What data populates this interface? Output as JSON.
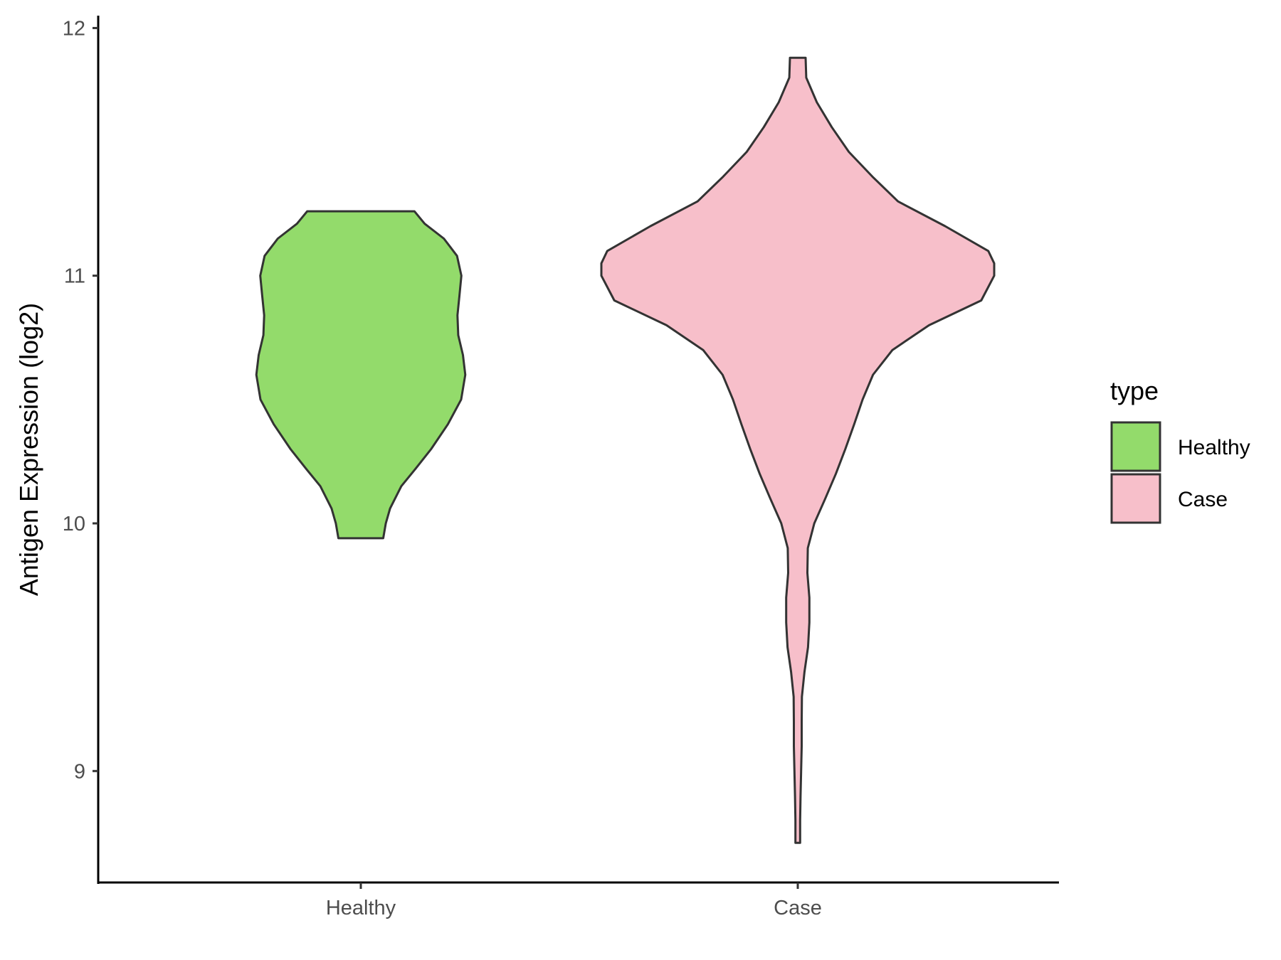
{
  "chart_data": {
    "type": "violin",
    "title": "",
    "xlabel": "",
    "ylabel": "Antigen Expression (log2)",
    "ylim": [
      8.55,
      12.05
    ],
    "yticks": [
      9,
      10,
      11,
      12
    ],
    "categories": [
      "Healthy",
      "Case"
    ],
    "legend": {
      "title": "type",
      "position": "right",
      "entries": [
        "Healthy",
        "Case"
      ]
    },
    "grid": false,
    "series": [
      {
        "name": "Healthy",
        "color": "#93DB6B",
        "range": [
          9.94,
          11.26
        ],
        "density": [
          [
            9.94,
            0.114
          ],
          [
            10.0,
            0.127
          ],
          [
            10.06,
            0.149
          ],
          [
            10.15,
            0.206
          ],
          [
            10.22,
            0.278
          ],
          [
            10.3,
            0.358
          ],
          [
            10.4,
            0.443
          ],
          [
            10.5,
            0.511
          ],
          [
            10.6,
            0.532
          ],
          [
            10.68,
            0.52
          ],
          [
            10.76,
            0.496
          ],
          [
            10.84,
            0.492
          ],
          [
            10.92,
            0.502
          ],
          [
            11.0,
            0.512
          ],
          [
            11.08,
            0.49
          ],
          [
            11.15,
            0.423
          ],
          [
            11.21,
            0.325
          ],
          [
            11.26,
            0.273
          ]
        ]
      },
      {
        "name": "Case",
        "color": "#F7BFCA",
        "range": [
          8.71,
          11.88
        ],
        "density": [
          [
            8.71,
            0.012
          ],
          [
            8.8,
            0.012
          ],
          [
            8.9,
            0.014
          ],
          [
            9.0,
            0.017
          ],
          [
            9.1,
            0.02
          ],
          [
            9.2,
            0.02
          ],
          [
            9.3,
            0.021
          ],
          [
            9.4,
            0.034
          ],
          [
            9.5,
            0.052
          ],
          [
            9.6,
            0.059
          ],
          [
            9.7,
            0.059
          ],
          [
            9.8,
            0.049
          ],
          [
            9.9,
            0.051
          ],
          [
            10.0,
            0.084
          ],
          [
            10.1,
            0.14
          ],
          [
            10.2,
            0.194
          ],
          [
            10.3,
            0.242
          ],
          [
            10.4,
            0.287
          ],
          [
            10.5,
            0.33
          ],
          [
            10.6,
            0.383
          ],
          [
            10.7,
            0.482
          ],
          [
            10.8,
            0.668
          ],
          [
            10.9,
            0.934
          ],
          [
            11.0,
            1.0
          ],
          [
            11.05,
            1.0
          ],
          [
            11.1,
            0.97
          ],
          [
            11.2,
            0.75
          ],
          [
            11.3,
            0.51
          ],
          [
            11.4,
            0.38
          ],
          [
            11.5,
            0.26
          ],
          [
            11.6,
            0.173
          ],
          [
            11.7,
            0.097
          ],
          [
            11.8,
            0.043
          ],
          [
            11.88,
            0.04
          ]
        ]
      }
    ]
  }
}
